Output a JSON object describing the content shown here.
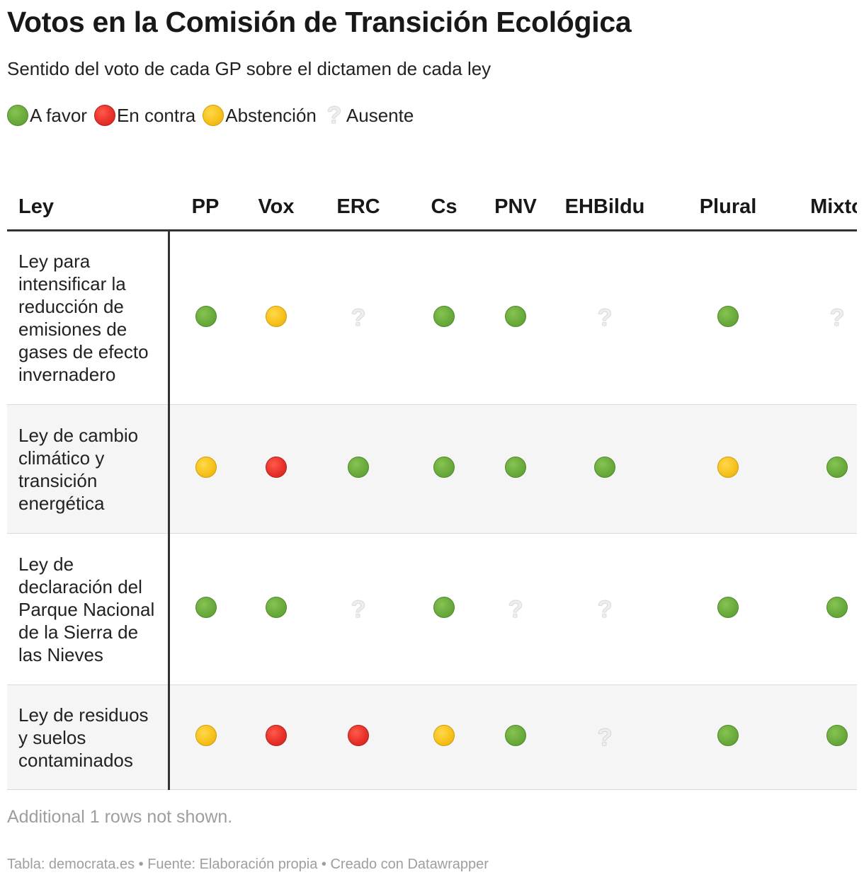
{
  "title": "Votos en la Comisión de Transición Ecológica",
  "subtitle": "Sentido del voto de cada GP sobre el dictamen de cada ley",
  "legend": [
    {
      "kind": "favor",
      "label": "A favor"
    },
    {
      "kind": "contra",
      "label": "En contra"
    },
    {
      "kind": "abst",
      "label": "Abstención"
    },
    {
      "kind": "ausente",
      "label": "Ausente"
    }
  ],
  "table": {
    "columns": [
      "Ley",
      "PP",
      "Vox",
      "ERC",
      "Cs",
      "PNV",
      "EHBildu",
      "Plural",
      "Mixto"
    ],
    "rows": [
      {
        "ley": "Ley para intensificar la reducción de emisiones de gases de efecto invernadero",
        "votes": [
          "favor",
          "abst",
          "ausente",
          "favor",
          "favor",
          "ausente",
          "favor",
          "ausente"
        ]
      },
      {
        "ley": "Ley de cambio climático y transición energética",
        "votes": [
          "abst",
          "contra",
          "favor",
          "favor",
          "favor",
          "favor",
          "abst",
          "favor"
        ]
      },
      {
        "ley": "Ley de declaración del Parque Nacional de la Sierra de las Nieves",
        "votes": [
          "favor",
          "favor",
          "ausente",
          "favor",
          "ausente",
          "ausente",
          "favor",
          "favor"
        ]
      },
      {
        "ley": "Ley de residuos y suelos contaminados",
        "votes": [
          "abst",
          "contra",
          "contra",
          "abst",
          "favor",
          "ausente",
          "favor",
          "favor"
        ]
      }
    ]
  },
  "note": "Additional 1 rows not shown.",
  "footer": "Tabla: democrata.es • Fuente: Elaboración propia • Creado con Datawrapper"
}
